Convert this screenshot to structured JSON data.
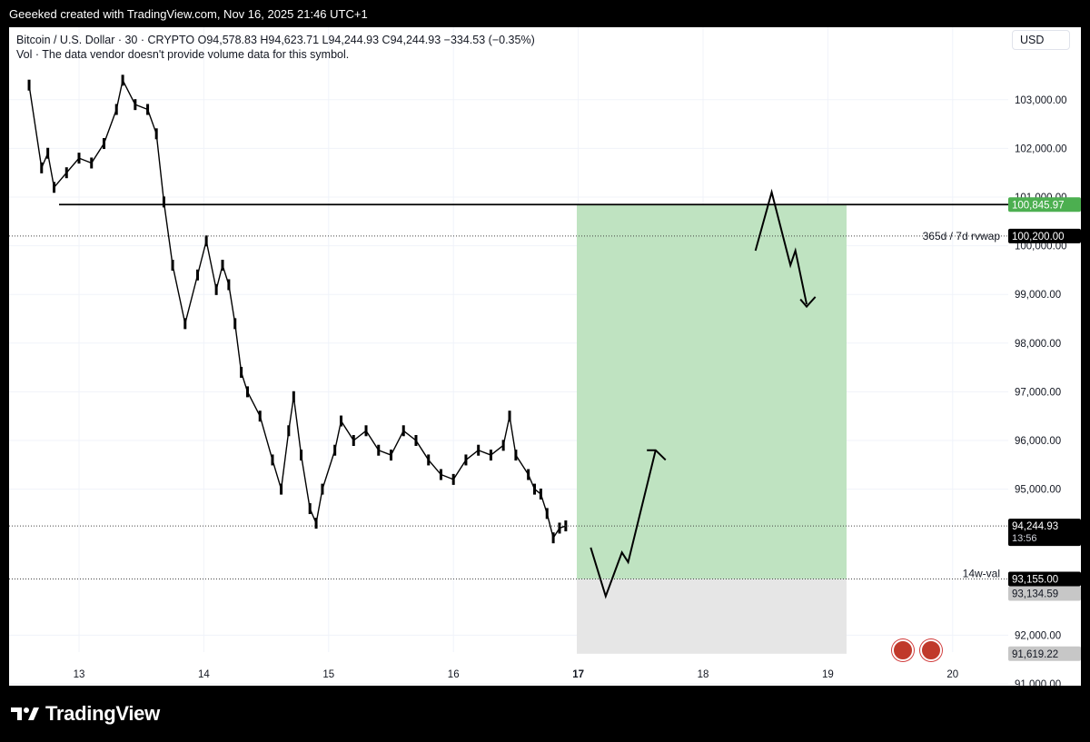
{
  "caption": "Geeeked created with TradingView.com, Nov 16, 2025 21:46 UTC+1",
  "legend": {
    "line1": "Bitcoin / U.S. Dollar · 30 · CRYPTO  O94,578.83  H94,623.71  L94,244.93  C94,244.93  −334.53 (−0.35%)",
    "line2": "Vol · The data vendor doesn't provide volume data for this symbol."
  },
  "currency": "USD",
  "brand": "TradingView",
  "colors": {
    "candle": "#000000",
    "target_zone": "#bfe3c1",
    "stop_zone": "#e6e6e6",
    "resistance_label_bg": "#4caf50",
    "dark_label_bg": "#000000",
    "gray_label_bg": "#c7c7c7"
  },
  "chart_data": {
    "type": "candlestick",
    "symbol": "Bitcoin / U.S. Dollar",
    "x_ticks": [
      "13",
      "14",
      "15",
      "16",
      "17",
      "18",
      "19",
      "20"
    ],
    "y_ticks": [
      "103,000.00",
      "102,000.00",
      "101,000.00",
      "100,000.00",
      "99,000.00",
      "98,000.00",
      "97,000.00",
      "96,000.00",
      "95,000.00",
      "92,000.00",
      "91,000.00"
    ],
    "ylim": [
      90800,
      103700
    ],
    "series": [
      {
        "x": 12.6,
        "y": 103300
      },
      {
        "x": 12.7,
        "y": 101600
      },
      {
        "x": 12.75,
        "y": 101900
      },
      {
        "x": 12.8,
        "y": 101200
      },
      {
        "x": 12.9,
        "y": 101500
      },
      {
        "x": 13.0,
        "y": 101800
      },
      {
        "x": 13.1,
        "y": 101700
      },
      {
        "x": 13.2,
        "y": 102100
      },
      {
        "x": 13.3,
        "y": 102800
      },
      {
        "x": 13.35,
        "y": 103400
      },
      {
        "x": 13.45,
        "y": 102900
      },
      {
        "x": 13.55,
        "y": 102800
      },
      {
        "x": 13.62,
        "y": 102300
      },
      {
        "x": 13.68,
        "y": 100900
      },
      {
        "x": 13.75,
        "y": 99600
      },
      {
        "x": 13.85,
        "y": 98400
      },
      {
        "x": 13.95,
        "y": 99400
      },
      {
        "x": 14.02,
        "y": 100100
      },
      {
        "x": 14.1,
        "y": 99100
      },
      {
        "x": 14.15,
        "y": 99600
      },
      {
        "x": 14.2,
        "y": 99200
      },
      {
        "x": 14.25,
        "y": 98400
      },
      {
        "x": 14.3,
        "y": 97400
      },
      {
        "x": 14.35,
        "y": 97000
      },
      {
        "x": 14.45,
        "y": 96500
      },
      {
        "x": 14.55,
        "y": 95600
      },
      {
        "x": 14.62,
        "y": 95000
      },
      {
        "x": 14.68,
        "y": 96200
      },
      {
        "x": 14.72,
        "y": 96900
      },
      {
        "x": 14.78,
        "y": 95700
      },
      {
        "x": 14.85,
        "y": 94600
      },
      {
        "x": 14.9,
        "y": 94300
      },
      {
        "x": 14.95,
        "y": 95000
      },
      {
        "x": 15.05,
        "y": 95800
      },
      {
        "x": 15.1,
        "y": 96400
      },
      {
        "x": 15.2,
        "y": 96000
      },
      {
        "x": 15.3,
        "y": 96200
      },
      {
        "x": 15.4,
        "y": 95800
      },
      {
        "x": 15.5,
        "y": 95700
      },
      {
        "x": 15.6,
        "y": 96200
      },
      {
        "x": 15.7,
        "y": 96000
      },
      {
        "x": 15.8,
        "y": 95600
      },
      {
        "x": 15.9,
        "y": 95300
      },
      {
        "x": 16.0,
        "y": 95200
      },
      {
        "x": 16.1,
        "y": 95600
      },
      {
        "x": 16.2,
        "y": 95800
      },
      {
        "x": 16.3,
        "y": 95700
      },
      {
        "x": 16.4,
        "y": 95900
      },
      {
        "x": 16.45,
        "y": 96500
      },
      {
        "x": 16.5,
        "y": 95700
      },
      {
        "x": 16.6,
        "y": 95300
      },
      {
        "x": 16.65,
        "y": 95000
      },
      {
        "x": 16.7,
        "y": 94900
      },
      {
        "x": 16.75,
        "y": 94500
      },
      {
        "x": 16.8,
        "y": 94000
      },
      {
        "x": 16.85,
        "y": 94200
      },
      {
        "x": 16.9,
        "y": 94245
      }
    ],
    "zones": {
      "target_top": 100845.97,
      "entry": 93155.0,
      "stop": 91619.22
    },
    "levels": [
      {
        "label": "365d / 7d rvwap",
        "value_text": "100,200.00"
      },
      {
        "label": "14w-val",
        "value_text": "93,155.00"
      }
    ],
    "price_labels": {
      "resistance": "100,845.97",
      "rvwap": "100,200.00",
      "last": "94,244.93",
      "countdown": "13:56",
      "val": "93,155.00",
      "val_alt": "93,134.59",
      "stop": "91,619.22"
    }
  }
}
